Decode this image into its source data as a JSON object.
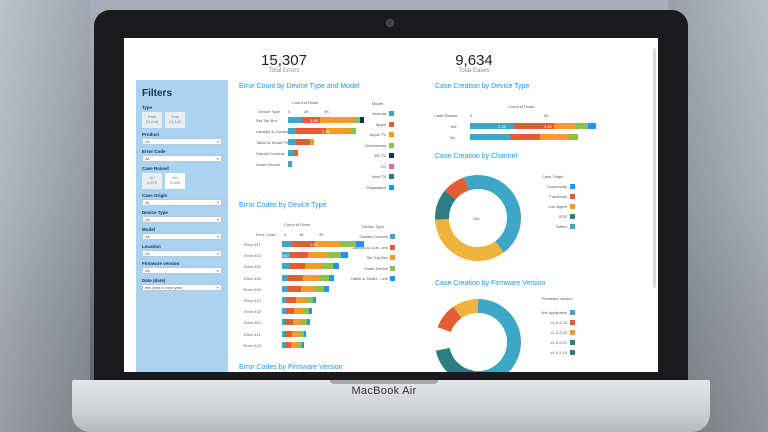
{
  "device": {
    "brand": "MacBook Air"
  },
  "kpis": [
    {
      "value": "15,307",
      "label": "Total Errors"
    },
    {
      "value": "9,634",
      "label": "Total Cases"
    }
  ],
  "filters": {
    "title": "Filters",
    "type_label": "Type",
    "type_options": [
      {
        "label": "Paid",
        "count": "53,848"
      },
      {
        "label": "Trial",
        "count": "25,132"
      }
    ],
    "fields": [
      {
        "label": "Product",
        "value": "All"
      },
      {
        "label": "Error Code",
        "value": "All"
      },
      {
        "label": "Case Origin",
        "value": "All"
      },
      {
        "label": "Device Type",
        "value": "All"
      },
      {
        "label": "Model",
        "value": "All"
      },
      {
        "label": "Location",
        "value": "All"
      },
      {
        "label": "Firmware version",
        "value": "All"
      }
    ],
    "case_raised_label": "Case Raised",
    "case_raised_options": [
      {
        "label": "No",
        "count": "5,875"
      },
      {
        "label": "Yes",
        "count": "9,636"
      }
    ],
    "date_label": "Date (date)",
    "date_value": "this year to next year"
  },
  "chart1": {
    "title": "Error Count by Device Type and Model",
    "measure": "Count of Rows",
    "dim_label": "Device Type",
    "ticks": [
      "0",
      "2K",
      "3K"
    ],
    "rows": [
      "Set Top Box",
      "Laptops & Computers",
      "Tablet & Smart Phone",
      "Games Console",
      "Smart Device"
    ],
    "value_labels": [
      "3.88",
      "2.36"
    ],
    "legend_title": "Model",
    "legend": [
      "Android",
      "Apple",
      "Apple TV",
      "Chromecast",
      "EE TV",
      "LG",
      "Now TV",
      "Playstation"
    ]
  },
  "chart2": {
    "title": "Case Creation by Device Type",
    "measure": "Count of Rows",
    "dim_label": "Case Raised",
    "ticks": [
      "0",
      "3K"
    ],
    "rows": [
      "Yes",
      "No"
    ],
    "value_labels": [
      "3.48",
      "3.15"
    ]
  },
  "chart3": {
    "title": "Error Codes by Device Type",
    "measure": "Count of Rows",
    "dim_label": "Error Code",
    "ticks": [
      "0",
      "1K",
      "2K"
    ],
    "rows": [
      "Error 017",
      "Error 014",
      "Error 015",
      "Error 016",
      "Error 019",
      "Error 012",
      "Error 018",
      "Error 020",
      "Error 011",
      "Error 013"
    ],
    "value_labels": [
      "1.96",
      "950"
    ],
    "legend_title": "Device Type",
    "legend": [
      "Games Console",
      "Laptops & Com...ers",
      "Set Top Box",
      "Smart Device",
      "Tablet & Smart ...one"
    ]
  },
  "chart4": {
    "title": "Case Creation by Channel",
    "center_label": "Yes",
    "legend_title": "Case Origin",
    "legend": [
      "Community",
      "Facebook",
      "Live Agent",
      "SOS",
      "Twitter"
    ]
  },
  "chart5": {
    "title": "Case Creation by Firmware Version",
    "legend_title": "Firmware version",
    "legend": [
      "Not Applicable",
      "v1.0.1.22",
      "v1.0.2.02",
      "v1.0.2.07",
      "v1.0.2.10"
    ]
  },
  "chart6": {
    "title": "Error Codes by Firmware Version"
  },
  "colors": {
    "blue": "#1b96ff",
    "teal": "#3ea6c6",
    "orange": "#f49b2c",
    "red": "#e35d34",
    "green": "#8cc152",
    "navy": "#16325c",
    "pink": "#e76a9b",
    "dark_teal": "#2d7d84"
  }
}
